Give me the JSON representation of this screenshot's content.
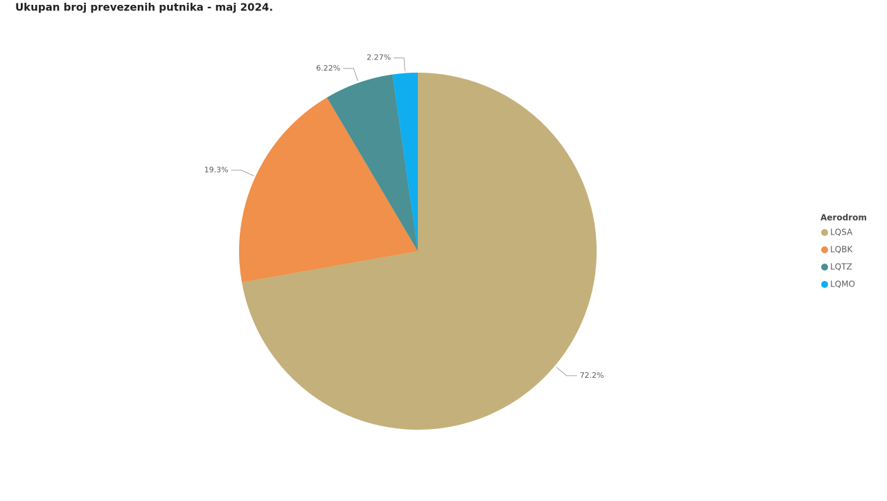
{
  "chart_data": {
    "type": "pie",
    "title": "Ukupan broj prevezenih putnika - maj 2024.",
    "legend_title": "Aerodrom",
    "categories": [
      "LQSA",
      "LQBK",
      "LQTZ",
      "LQMO"
    ],
    "values": [
      72.2,
      19.3,
      6.22,
      2.27
    ],
    "value_labels": [
      "72.2%",
      "19.3%",
      "6.22%",
      "2.27%"
    ],
    "colors": [
      "#c4b07b",
      "#f0904a",
      "#4a9094",
      "#10aeef"
    ],
    "legend_position": "right"
  }
}
